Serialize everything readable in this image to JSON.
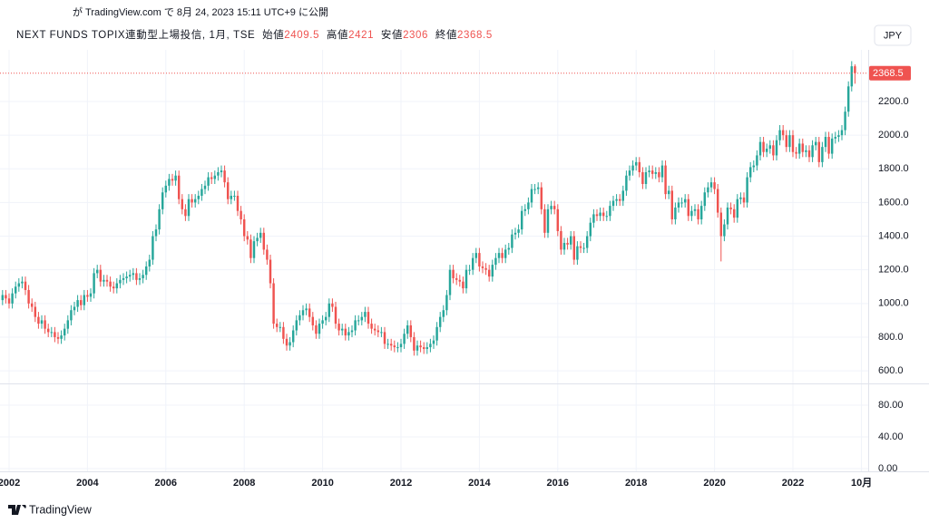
{
  "published": "が TradingView.com で 8月 24, 2023 15:11 UTC+9 に公開",
  "brand": "TradingView",
  "currency_button": "JPY",
  "chart_data": {
    "type": "candlestick",
    "symbol": "NEXT FUNDS TOPIX連動型上場投信, 1月, TSE",
    "open_label": "始値",
    "high_label": "高値",
    "low_label": "安値",
    "close_label": "終値",
    "up_color": "#26a69a",
    "down_color": "#ef5350",
    "grid": true,
    "price_line": true,
    "open": [
      1020,
      1050,
      1030,
      1000,
      1060,
      1100,
      1120,
      1130,
      1080,
      1000,
      980,
      920,
      880,
      900,
      850,
      830,
      830,
      800,
      790,
      810,
      850,
      900,
      960,
      980,
      1020,
      990,
      1050,
      1040,
      1060,
      1180,
      1200,
      1130,
      1140,
      1130,
      1100,
      1090,
      1120,
      1140,
      1150,
      1160,
      1170,
      1180,
      1140,
      1150,
      1170,
      1220,
      1260,
      1400,
      1440,
      1560,
      1660,
      1700,
      1740,
      1730,
      1760,
      1620,
      1560,
      1520,
      1620,
      1600,
      1620,
      1640,
      1680,
      1700,
      1750,
      1740,
      1760,
      1780,
      1790,
      1720,
      1620,
      1640,
      1640,
      1550,
      1500,
      1400,
      1380,
      1270,
      1370,
      1390,
      1420,
      1320,
      1260,
      1120,
      880,
      860,
      860,
      790,
      750,
      770,
      840,
      900,
      930,
      960,
      970,
      920,
      870,
      820,
      880,
      900,
      920,
      1000,
      980,
      880,
      840,
      850,
      810,
      830,
      840,
      900,
      900,
      920,
      950,
      880,
      850,
      840,
      830,
      830,
      760,
      760,
      750,
      740,
      740,
      760,
      820,
      870,
      800,
      720,
      750,
      740,
      730,
      740,
      760,
      780,
      860,
      920,
      960,
      1050,
      1200,
      1150,
      1140,
      1130,
      1090,
      1200,
      1200,
      1270,
      1300,
      1220,
      1210,
      1200,
      1160,
      1230,
      1270,
      1300,
      1270,
      1320,
      1330,
      1410,
      1420,
      1440,
      1550,
      1560,
      1600,
      1680,
      1680,
      1690,
      1560,
      1420,
      1560,
      1580,
      1560,
      1430,
      1320,
      1360,
      1350,
      1400,
      1260,
      1340,
      1330,
      1330,
      1400,
      1480,
      1530,
      1520,
      1540,
      1520,
      1520,
      1580,
      1610,
      1620,
      1610,
      1670,
      1760,
      1790,
      1820,
      1840,
      1780,
      1710,
      1780,
      1790,
      1770,
      1780,
      1750,
      1820,
      1650,
      1670,
      1500,
      1570,
      1600,
      1600,
      1620,
      1520,
      1550,
      1560,
      1500,
      1580,
      1660,
      1690,
      1720,
      1680,
      1540,
      1400,
      1470,
      1570,
      1560,
      1510,
      1620,
      1630,
      1600,
      1750,
      1810,
      1820,
      1880,
      1960,
      1900,
      1920,
      1940,
      1880,
      1970,
      2030,
      2000,
      1930,
      2000,
      1900,
      1890,
      1950,
      1900,
      1910,
      1870,
      1940,
      1960,
      1840,
      1930,
      1990,
      1890,
      1980,
      1990,
      2000,
      2030,
      2140,
      2290,
      2409.5
    ],
    "high": [
      1080,
      1080,
      1060,
      1090,
      1130,
      1150,
      1160,
      1160,
      1110,
      1030,
      1010,
      950,
      930,
      930,
      880,
      860,
      860,
      830,
      840,
      880,
      930,
      990,
      1010,
      1050,
      1050,
      1080,
      1080,
      1090,
      1210,
      1230,
      1230,
      1170,
      1170,
      1160,
      1130,
      1150,
      1170,
      1180,
      1190,
      1200,
      1210,
      1210,
      1180,
      1200,
      1250,
      1290,
      1430,
      1470,
      1590,
      1690,
      1730,
      1770,
      1770,
      1790,
      1790,
      1650,
      1590,
      1650,
      1650,
      1650,
      1670,
      1710,
      1730,
      1780,
      1780,
      1790,
      1810,
      1820,
      1820,
      1750,
      1670,
      1670,
      1670,
      1580,
      1530,
      1430,
      1410,
      1400,
      1420,
      1450,
      1450,
      1350,
      1290,
      1150,
      910,
      890,
      890,
      820,
      800,
      870,
      930,
      960,
      990,
      1000,
      1000,
      950,
      900,
      910,
      930,
      950,
      1030,
      1030,
      1010,
      910,
      880,
      880,
      860,
      870,
      930,
      930,
      950,
      980,
      980,
      910,
      880,
      870,
      860,
      860,
      790,
      790,
      780,
      770,
      790,
      850,
      900,
      900,
      830,
      780,
      780,
      770,
      770,
      790,
      810,
      890,
      950,
      990,
      1080,
      1230,
      1230,
      1180,
      1170,
      1160,
      1230,
      1230,
      1300,
      1330,
      1330,
      1250,
      1240,
      1230,
      1260,
      1300,
      1330,
      1330,
      1350,
      1360,
      1440,
      1450,
      1470,
      1580,
      1590,
      1630,
      1710,
      1710,
      1720,
      1720,
      1590,
      1590,
      1610,
      1610,
      1590,
      1460,
      1390,
      1390,
      1430,
      1430,
      1370,
      1370,
      1360,
      1430,
      1510,
      1560,
      1560,
      1570,
      1570,
      1550,
      1610,
      1640,
      1650,
      1650,
      1700,
      1790,
      1820,
      1850,
      1870,
      1870,
      1810,
      1810,
      1820,
      1820,
      1810,
      1810,
      1850,
      1850,
      1700,
      1700,
      1600,
      1630,
      1630,
      1650,
      1650,
      1580,
      1590,
      1590,
      1610,
      1690,
      1720,
      1750,
      1750,
      1710,
      1570,
      1500,
      1600,
      1600,
      1590,
      1650,
      1660,
      1660,
      1780,
      1840,
      1850,
      1910,
      1990,
      1990,
      1950,
      1970,
      1970,
      2000,
      2060,
      2060,
      2030,
      2030,
      2030,
      1930,
      1980,
      1980,
      1940,
      1940,
      1970,
      1990,
      1990,
      1960,
      2020,
      2020,
      2010,
      2020,
      2030,
      2060,
      2170,
      2320,
      2440,
      2421
    ],
    "low": [
      990,
      1000,
      970,
      970,
      1030,
      1070,
      1090,
      1050,
      970,
      950,
      890,
      850,
      850,
      820,
      800,
      800,
      770,
      760,
      760,
      780,
      820,
      870,
      930,
      950,
      960,
      960,
      1010,
      1010,
      1030,
      1150,
      1100,
      1100,
      1100,
      1070,
      1060,
      1060,
      1090,
      1110,
      1120,
      1130,
      1140,
      1110,
      1110,
      1120,
      1140,
      1190,
      1230,
      1370,
      1410,
      1530,
      1630,
      1670,
      1700,
      1700,
      1590,
      1530,
      1490,
      1490,
      1570,
      1570,
      1590,
      1610,
      1650,
      1670,
      1710,
      1710,
      1730,
      1750,
      1690,
      1590,
      1590,
      1610,
      1520,
      1470,
      1370,
      1350,
      1240,
      1240,
      1340,
      1360,
      1290,
      1230,
      1090,
      850,
      830,
      830,
      760,
      720,
      720,
      740,
      810,
      870,
      900,
      930,
      890,
      840,
      790,
      790,
      850,
      870,
      890,
      950,
      850,
      810,
      810,
      780,
      780,
      800,
      810,
      870,
      870,
      890,
      850,
      820,
      810,
      800,
      800,
      730,
      730,
      720,
      710,
      710,
      710,
      730,
      790,
      770,
      690,
      690,
      710,
      700,
      700,
      710,
      730,
      750,
      830,
      890,
      930,
      1020,
      1120,
      1110,
      1100,
      1060,
      1060,
      1170,
      1170,
      1240,
      1190,
      1180,
      1170,
      1130,
      1130,
      1200,
      1240,
      1240,
      1240,
      1290,
      1300,
      1380,
      1390,
      1410,
      1520,
      1530,
      1570,
      1650,
      1650,
      1530,
      1390,
      1390,
      1530,
      1530,
      1400,
      1290,
      1290,
      1320,
      1320,
      1230,
      1230,
      1300,
      1300,
      1300,
      1370,
      1450,
      1490,
      1490,
      1490,
      1490,
      1490,
      1550,
      1580,
      1580,
      1580,
      1640,
      1730,
      1760,
      1790,
      1750,
      1680,
      1680,
      1750,
      1740,
      1740,
      1720,
      1720,
      1620,
      1620,
      1470,
      1470,
      1540,
      1570,
      1570,
      1490,
      1490,
      1520,
      1470,
      1470,
      1550,
      1630,
      1660,
      1650,
      1510,
      1250,
      1370,
      1440,
      1530,
      1480,
      1480,
      1590,
      1570,
      1570,
      1720,
      1780,
      1790,
      1850,
      1870,
      1870,
      1890,
      1850,
      1850,
      1940,
      1970,
      1900,
      1900,
      1870,
      1860,
      1860,
      1870,
      1870,
      1840,
      1840,
      1910,
      1810,
      1810,
      1900,
      1860,
      1860,
      1950,
      1960,
      1970,
      2000,
      2110,
      2260,
      2306
    ],
    "close": [
      1050,
      1030,
      1000,
      1060,
      1100,
      1120,
      1130,
      1080,
      1000,
      980,
      920,
      880,
      900,
      850,
      830,
      830,
      800,
      790,
      810,
      850,
      900,
      960,
      980,
      1020,
      990,
      1050,
      1040,
      1060,
      1180,
      1200,
      1130,
      1140,
      1130,
      1100,
      1090,
      1120,
      1140,
      1150,
      1160,
      1170,
      1180,
      1140,
      1150,
      1170,
      1220,
      1260,
      1400,
      1440,
      1560,
      1660,
      1700,
      1740,
      1730,
      1760,
      1620,
      1560,
      1520,
      1620,
      1600,
      1620,
      1640,
      1680,
      1700,
      1750,
      1740,
      1760,
      1780,
      1790,
      1720,
      1620,
      1640,
      1640,
      1550,
      1500,
      1400,
      1380,
      1270,
      1370,
      1390,
      1420,
      1320,
      1260,
      1120,
      880,
      860,
      860,
      790,
      750,
      770,
      840,
      900,
      930,
      960,
      970,
      920,
      870,
      820,
      880,
      900,
      920,
      1000,
      980,
      880,
      840,
      850,
      810,
      830,
      840,
      900,
      900,
      920,
      950,
      880,
      850,
      840,
      830,
      830,
      760,
      760,
      750,
      740,
      740,
      760,
      820,
      870,
      800,
      720,
      750,
      740,
      730,
      740,
      760,
      780,
      860,
      920,
      960,
      1050,
      1200,
      1150,
      1140,
      1130,
      1090,
      1200,
      1200,
      1270,
      1300,
      1220,
      1210,
      1200,
      1160,
      1230,
      1270,
      1300,
      1270,
      1320,
      1330,
      1410,
      1420,
      1440,
      1550,
      1560,
      1600,
      1680,
      1680,
      1690,
      1560,
      1420,
      1560,
      1580,
      1560,
      1430,
      1320,
      1360,
      1350,
      1400,
      1260,
      1340,
      1330,
      1330,
      1400,
      1480,
      1530,
      1520,
      1540,
      1520,
      1520,
      1580,
      1610,
      1620,
      1610,
      1670,
      1760,
      1790,
      1820,
      1840,
      1780,
      1710,
      1780,
      1790,
      1770,
      1780,
      1750,
      1820,
      1650,
      1670,
      1500,
      1570,
      1600,
      1600,
      1620,
      1520,
      1550,
      1560,
      1500,
      1580,
      1660,
      1690,
      1720,
      1680,
      1540,
      1400,
      1470,
      1570,
      1560,
      1510,
      1620,
      1630,
      1600,
      1750,
      1810,
      1820,
      1880,
      1960,
      1900,
      1920,
      1940,
      1880,
      1970,
      2030,
      2000,
      1930,
      2000,
      1900,
      1890,
      1950,
      1900,
      1910,
      1870,
      1940,
      1960,
      1840,
      1930,
      1990,
      1890,
      1980,
      1990,
      2000,
      2030,
      2140,
      2290,
      2409.5,
      2368.5
    ],
    "xlim": [
      -0.78,
      265.06
    ],
    "xticks": [
      {
        "value": 2,
        "label": "2002"
      },
      {
        "value": 26,
        "label": "2004"
      },
      {
        "value": 50,
        "label": "2006"
      },
      {
        "value": 74,
        "label": "2008"
      },
      {
        "value": 98,
        "label": "2010"
      },
      {
        "value": 122,
        "label": "2012"
      },
      {
        "value": 146,
        "label": "2014"
      },
      {
        "value": 170,
        "label": "2016"
      },
      {
        "value": 194,
        "label": "2018"
      },
      {
        "value": 218,
        "label": "2020"
      },
      {
        "value": 242,
        "label": "2022"
      },
      {
        "value": 263,
        "label": "10月"
      }
    ],
    "ylim": [
      525,
      2491
    ],
    "yticks": [
      {
        "value": 600,
        "label": "600.0"
      },
      {
        "value": 800,
        "label": "800.0"
      },
      {
        "value": 1000,
        "label": "1000.0"
      },
      {
        "value": 1200,
        "label": "1200.0"
      },
      {
        "value": 1400,
        "label": "1400.0"
      },
      {
        "value": 1600,
        "label": "1600.0"
      },
      {
        "value": 1800,
        "label": "1800.0"
      },
      {
        "value": 2000,
        "label": "2000.0"
      },
      {
        "value": 2200,
        "label": "2200.0"
      }
    ],
    "volume_panel": {
      "ylim": [
        -3.4,
        107.4
      ],
      "yticks": [
        {
          "value": 0,
          "label": "0.00"
        },
        {
          "value": 40,
          "label": "40.00"
        },
        {
          "value": 80,
          "label": "80.00"
        }
      ]
    }
  }
}
